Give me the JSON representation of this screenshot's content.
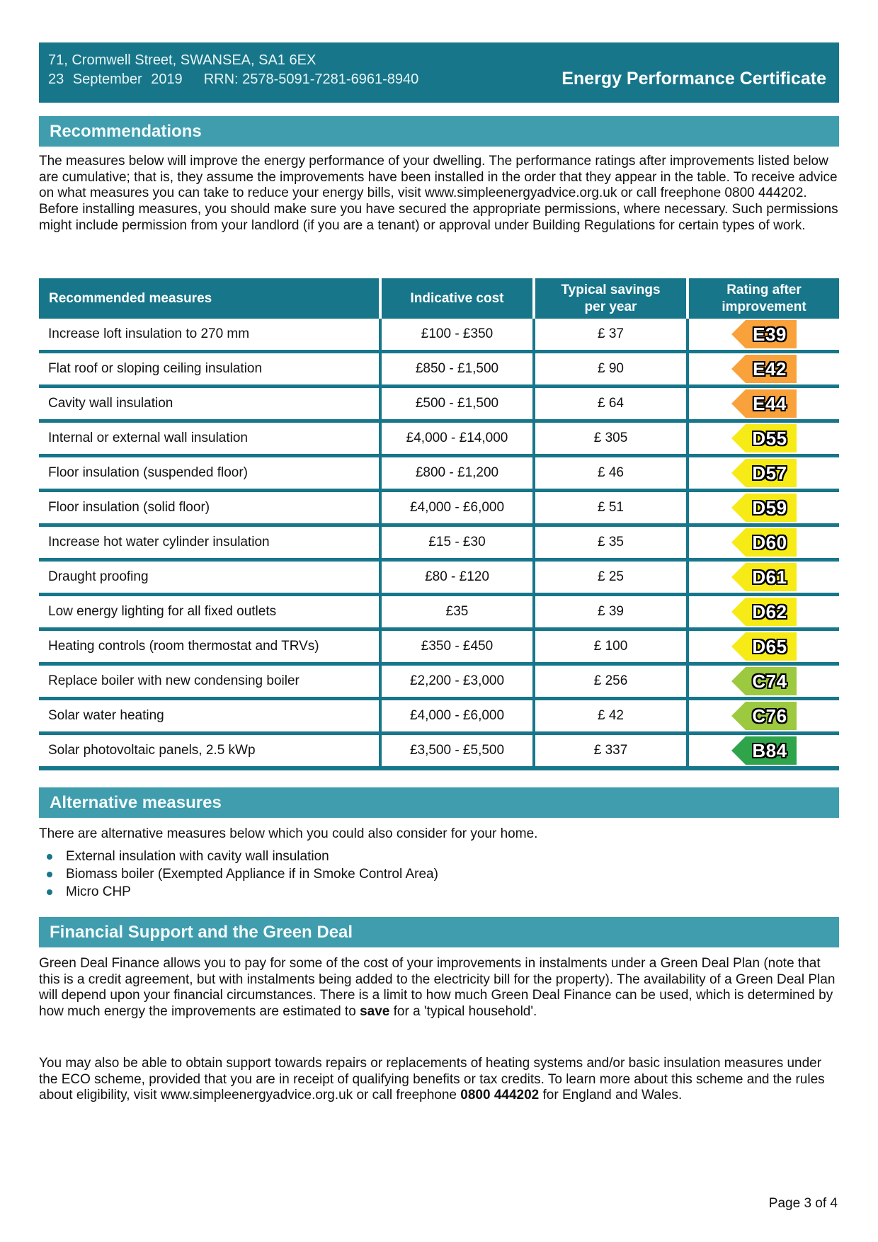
{
  "header": {
    "address": "71, Cromwell Street, SWANSEA, SA1 6EX",
    "date": "23 September 2019",
    "rrn": "RRN: 2578-5091-7281-6961-8940",
    "title": "Energy Performance Certificate"
  },
  "recommendations": {
    "heading": "Recommendations",
    "intro": "The measures below will improve the energy performance of your dwelling. The performance ratings after improvements listed below are cumulative; that is, they assume the improvements have been installed in the order that they appear in the table. To receive advice on what measures you can take to reduce your energy bills, visit www.simpleenergyadvice.org.uk or call freephone 0800 444202. Before installing measures, you should make sure you have secured the appropriate permissions, where necessary. Such permissions might include permission from your landlord (if you are a tenant) or approval under Building Regulations for certain types of work.",
    "table": {
      "columns": [
        "Recommended measures",
        "Indicative cost",
        "Typical savings per year",
        "Rating after improvement"
      ],
      "rows": [
        {
          "measure": "Increase loft insulation to 270 mm",
          "cost": "£100 - £350",
          "saving": "£ 37",
          "rating": "E39",
          "band": "E"
        },
        {
          "measure": "Flat roof or sloping ceiling insulation",
          "cost": "£850 - £1,500",
          "saving": "£ 90",
          "rating": "E42",
          "band": "E"
        },
        {
          "measure": "Cavity wall insulation",
          "cost": "£500 - £1,500",
          "saving": "£ 64",
          "rating": "E44",
          "band": "E"
        },
        {
          "measure": "Internal or external wall insulation",
          "cost": "£4,000 - £14,000",
          "saving": "£ 305",
          "rating": "D55",
          "band": "D"
        },
        {
          "measure": "Floor insulation (suspended floor)",
          "cost": "£800 - £1,200",
          "saving": "£ 46",
          "rating": "D57",
          "band": "D"
        },
        {
          "measure": "Floor insulation (solid floor)",
          "cost": "£4,000 - £6,000",
          "saving": "£ 51",
          "rating": "D59",
          "band": "D"
        },
        {
          "measure": "Increase hot water cylinder insulation",
          "cost": "£15 - £30",
          "saving": "£ 35",
          "rating": "D60",
          "band": "D"
        },
        {
          "measure": "Draught proofing",
          "cost": "£80 - £120",
          "saving": "£ 25",
          "rating": "D61",
          "band": "D"
        },
        {
          "measure": "Low energy lighting for all fixed outlets",
          "cost": "£35",
          "saving": "£ 39",
          "rating": "D62",
          "band": "D"
        },
        {
          "measure": "Heating controls (room thermostat and TRVs)",
          "cost": "£350 - £450",
          "saving": "£ 100",
          "rating": "D65",
          "band": "D"
        },
        {
          "measure": "Replace boiler with new condensing boiler",
          "cost": "£2,200 - £3,000",
          "saving": "£ 256",
          "rating": "C74",
          "band": "C"
        },
        {
          "measure": "Solar water heating",
          "cost": "£4,000 - £6,000",
          "saving": "£ 42",
          "rating": "C76",
          "band": "C"
        },
        {
          "measure": "Solar photovoltaic panels, 2.5 kWp",
          "cost": "£3,500 - £5,500",
          "saving": "£ 337",
          "rating": "B84",
          "band": "B"
        }
      ]
    }
  },
  "alternative": {
    "heading": "Alternative measures",
    "intro": "There are alternative measures below which you could also consider for your home.",
    "items": [
      "External insulation with cavity wall insulation",
      "Biomass boiler (Exempted Appliance if in Smoke Control Area)",
      "Micro CHP"
    ]
  },
  "financial": {
    "heading": "Financial Support and the Green Deal",
    "para1_part1": "Green Deal Finance allows you to pay for some of the cost of your improvements in instalments under a Green Deal Plan (note that this is a credit agreement, but with instalments being added to the electricity bill for the property). The availability of a Green Deal Plan will depend upon your financial circumstances. There is a limit to how much Green Deal Finance can be used, which is determined by how much energy the improvements are estimated to ",
    "para1_bold": "save",
    "para1_part2": " for a 'typical household'.",
    "para2_part1": "You may also be able to obtain support towards repairs or replacements of heating systems and/or basic insulation measures under the ECO scheme, provided that you are in receipt of qualifying benefits or tax credits. To learn more about this scheme and the rules about eligibility, visit www.simpleenergyadvice.org.uk or call freephone ",
    "para2_bold": "0800 444202",
    "para2_part2": " for England and Wales."
  },
  "footer": {
    "page": "Page 3 of 4"
  },
  "colors": {
    "header_teal": "#17768A",
    "section_teal": "#3F9DAE",
    "bands": {
      "B": "#2FA44A",
      "C": "#9CC93F",
      "D": "#F6EB16",
      "E": "#F9A23B"
    }
  }
}
